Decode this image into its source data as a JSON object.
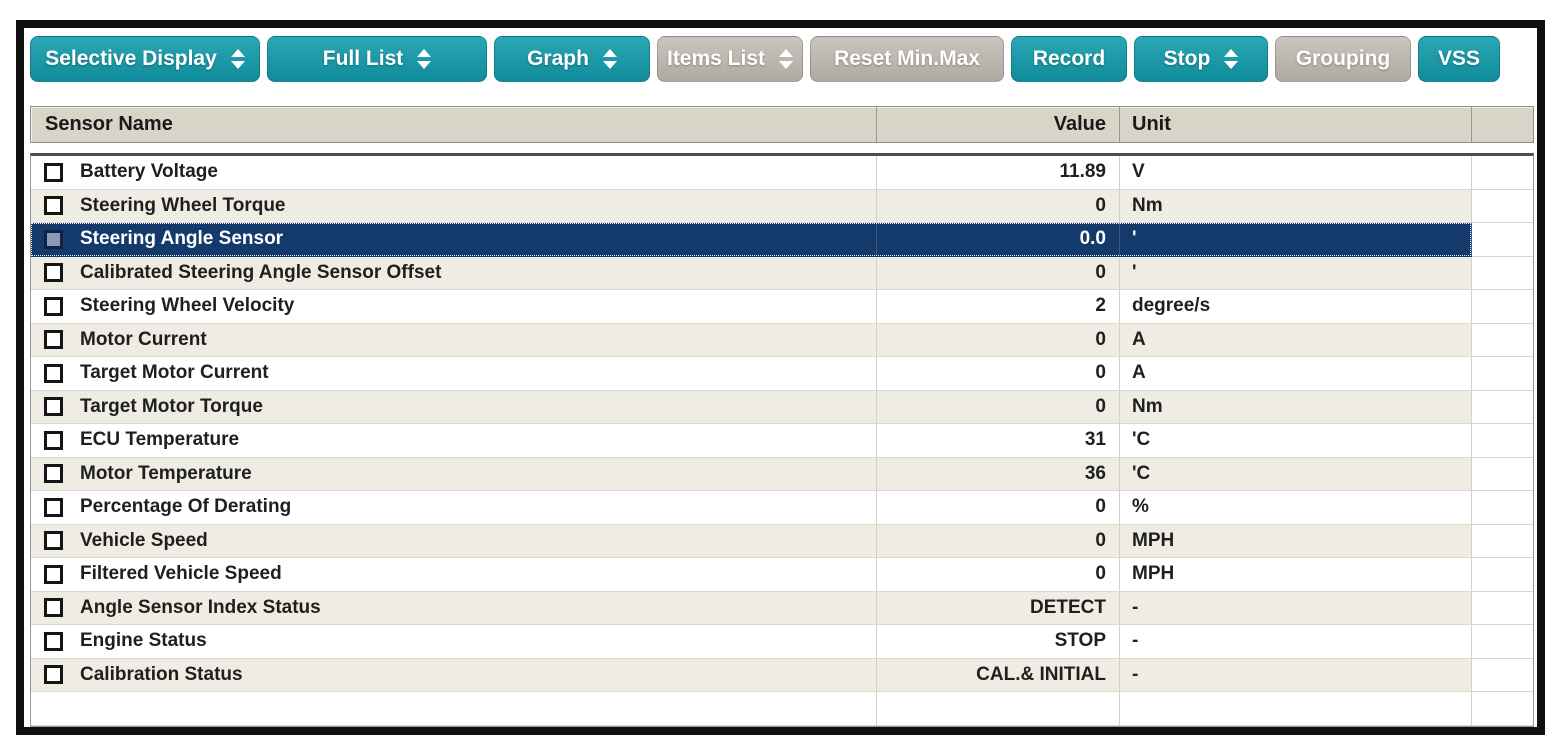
{
  "toolbar": {
    "buttons": [
      {
        "label": "Selective Display",
        "style": "teal",
        "spinner": true
      },
      {
        "label": "Full List",
        "style": "teal",
        "spinner": true
      },
      {
        "label": "Graph",
        "style": "teal",
        "spinner": true
      },
      {
        "label": "Items List",
        "style": "gray",
        "spinner": true
      },
      {
        "label": "Reset Min.Max",
        "style": "gray",
        "spinner": false
      },
      {
        "label": "Record",
        "style": "teal",
        "spinner": false
      },
      {
        "label": "Stop",
        "style": "teal",
        "spinner": true
      },
      {
        "label": "Grouping",
        "style": "gray",
        "spinner": false
      },
      {
        "label": "VSS",
        "style": "teal",
        "spinner": false
      }
    ]
  },
  "table": {
    "columns": [
      "Sensor Name",
      "Value",
      "Unit"
    ],
    "rows": [
      {
        "name": "Battery Voltage",
        "value": "11.89",
        "unit": "V",
        "checked": false,
        "selected": false
      },
      {
        "name": "Steering Wheel Torque",
        "value": "0",
        "unit": "Nm",
        "checked": false,
        "selected": false
      },
      {
        "name": "Steering Angle Sensor",
        "value": "0.0",
        "unit": "'",
        "checked": false,
        "selected": true
      },
      {
        "name": "Calibrated Steering Angle Sensor Offset",
        "value": "0",
        "unit": "'",
        "checked": false,
        "selected": false
      },
      {
        "name": "Steering Wheel Velocity",
        "value": "2",
        "unit": "degree/s",
        "checked": false,
        "selected": false
      },
      {
        "name": "Motor Current",
        "value": "0",
        "unit": "A",
        "checked": false,
        "selected": false
      },
      {
        "name": "Target Motor Current",
        "value": "0",
        "unit": "A",
        "checked": false,
        "selected": false
      },
      {
        "name": "Target Motor Torque",
        "value": "0",
        "unit": "Nm",
        "checked": false,
        "selected": false
      },
      {
        "name": "ECU Temperature",
        "value": "31",
        "unit": "'C",
        "checked": false,
        "selected": false
      },
      {
        "name": "Motor Temperature",
        "value": "36",
        "unit": "'C",
        "checked": false,
        "selected": false
      },
      {
        "name": "Percentage Of Derating",
        "value": "0",
        "unit": "%",
        "checked": false,
        "selected": false
      },
      {
        "name": "Vehicle Speed",
        "value": "0",
        "unit": "MPH",
        "checked": false,
        "selected": false
      },
      {
        "name": "Filtered Vehicle Speed",
        "value": "0",
        "unit": "MPH",
        "checked": false,
        "selected": false
      },
      {
        "name": "Angle Sensor Index Status",
        "value": "DETECT",
        "unit": "-",
        "checked": false,
        "selected": false
      },
      {
        "name": "Engine Status",
        "value": "STOP",
        "unit": "-",
        "checked": false,
        "selected": false
      },
      {
        "name": "Calibration Status",
        "value": "CAL.& INITIAL",
        "unit": "-",
        "checked": false,
        "selected": false
      },
      {
        "name": "",
        "value": "",
        "unit": "",
        "checked": false,
        "selected": false
      }
    ]
  },
  "colors": {
    "accent_teal": "#1598a6",
    "button_gray": "#bdb9b0",
    "selected_row": "#143a6c",
    "header_bg": "#d8d4c8",
    "row_alt": "#efece4",
    "frame_border": "#101010"
  }
}
